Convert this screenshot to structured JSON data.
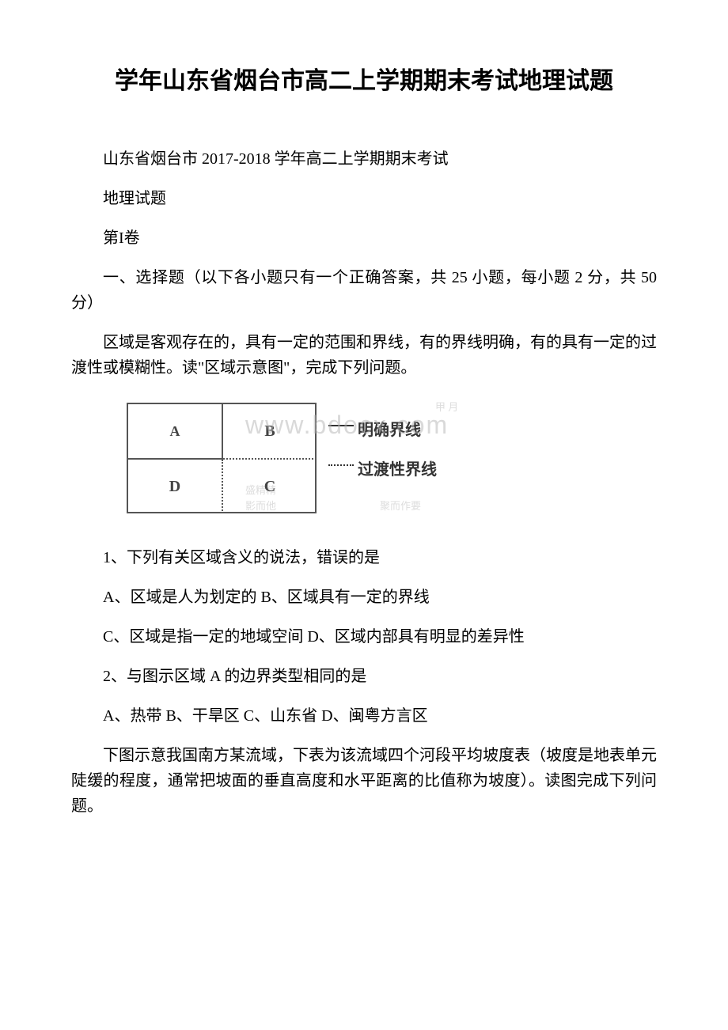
{
  "title": "学年山东省烟台市高二上学期期末考试地理试题",
  "subtitle_line1": "山东省烟台市 2017-2018 学年高二上学期期末考试",
  "subtitle_line2": "地理试题",
  "subtitle_line3": "第I卷",
  "section_header": "一、选择题（以下各小题只有一个正确答案，共 25 小题，每小题 2 分，共 50 分）",
  "passage1": "区域是客观存在的，具有一定的范围和界线，有的界线明确，有的具有一定的过渡性或模糊性。读\"区域示意图\"，完成下列问题。",
  "diagram": {
    "cell_a_label": "A",
    "cell_b_label": "B",
    "cell_c_label": "C",
    "cell_d_label": "D",
    "legend_solid": "明确界线",
    "legend_dotted": "过渡性界线",
    "watermark_text": "www.bdocx.com",
    "border_color": "#555555",
    "background_color": "#ffffff"
  },
  "q1": {
    "stem": "1、下列有关区域含义的说法，错误的是",
    "options": "A、区域是人为划定的 B、区域具有一定的界线",
    "options2": "C、区域是指一定的地域空间 D、区域内部具有明显的差异性"
  },
  "q2": {
    "stem": "2、与图示区域 A 的边界类型相同的是",
    "options": "A、热带 B、干旱区 C、山东省 D、闽粤方言区"
  },
  "passage2": "下图示意我国南方某流域，下表为该流域四个河段平均坡度表（坡度是地表单元陡缓的程度，通常把坡面的垂直高度和水平距离的比值称为坡度）。读图完成下列问题。",
  "colors": {
    "text": "#000000",
    "background": "#ffffff",
    "watermark": "rgba(180,180,180,0.5)",
    "noise": "rgba(120,120,120,0.25)"
  },
  "fontsize": {
    "title": 30,
    "body": 20,
    "legend": 20
  }
}
